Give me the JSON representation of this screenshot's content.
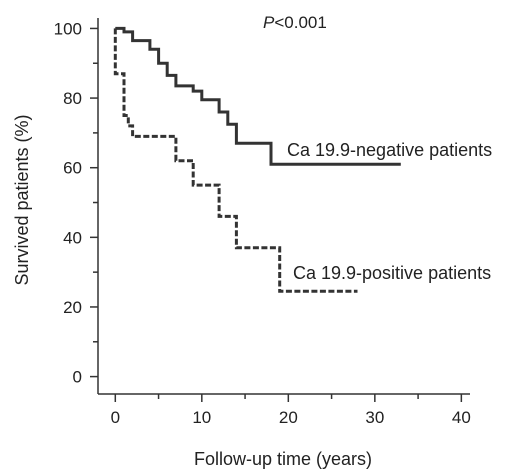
{
  "chart_data": {
    "type": "line",
    "subtype": "kaplan-meier step",
    "title": "",
    "xlabel": "Follow-up time (years)",
    "ylabel": "Survived patients (%)",
    "xlim": [
      -2,
      41
    ],
    "ylim": [
      -5,
      103
    ],
    "xticks": [
      0,
      10,
      20,
      30,
      40
    ],
    "yticks": [
      0,
      20,
      40,
      60,
      80,
      100
    ],
    "x_minor_ticks": [
      5,
      15,
      25,
      35
    ],
    "y_minor_ticks": [
      10,
      30,
      50,
      70,
      90
    ],
    "grid": false,
    "annotation": {
      "italic": "P",
      "rest": "<0.001"
    },
    "series": [
      {
        "name": "Ca 19.9-negative patients",
        "style": "solid",
        "color": "#333333",
        "points": [
          [
            0,
            100
          ],
          [
            1,
            100
          ],
          [
            1,
            99
          ],
          [
            2,
            99
          ],
          [
            2,
            96.5
          ],
          [
            4,
            96.5
          ],
          [
            4,
            94
          ],
          [
            5,
            94
          ],
          [
            5,
            90
          ],
          [
            6,
            90
          ],
          [
            6,
            86.5
          ],
          [
            7,
            86.5
          ],
          [
            7,
            83.5
          ],
          [
            9,
            83.5
          ],
          [
            9,
            82
          ],
          [
            10,
            82
          ],
          [
            10,
            79.5
          ],
          [
            12,
            79.5
          ],
          [
            12,
            76
          ],
          [
            13,
            76
          ],
          [
            13,
            72.5
          ],
          [
            14,
            72.5
          ],
          [
            14,
            67
          ],
          [
            18,
            67
          ],
          [
            18,
            61
          ],
          [
            33,
            61
          ]
        ]
      },
      {
        "name": "Ca 19.9-positive patients",
        "style": "dashed",
        "color": "#333333",
        "points": [
          [
            0,
            100
          ],
          [
            0,
            87
          ],
          [
            1,
            87
          ],
          [
            1,
            75
          ],
          [
            1.5,
            75
          ],
          [
            1.5,
            72
          ],
          [
            2,
            72
          ],
          [
            2,
            69
          ],
          [
            7,
            69
          ],
          [
            7,
            62
          ],
          [
            9,
            62
          ],
          [
            9,
            55
          ],
          [
            12,
            55
          ],
          [
            12,
            46
          ],
          [
            14,
            46
          ],
          [
            14,
            37
          ],
          [
            19,
            37
          ],
          [
            19,
            24.5
          ],
          [
            28,
            24.5
          ]
        ]
      }
    ]
  }
}
